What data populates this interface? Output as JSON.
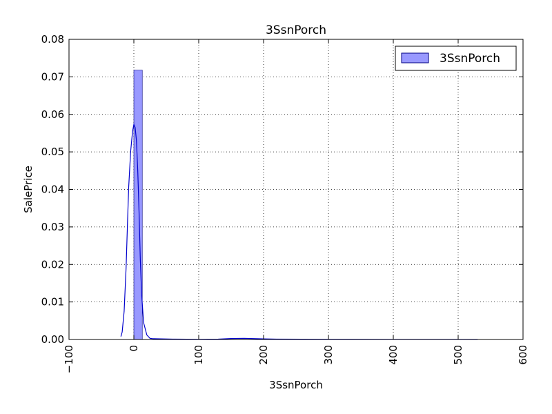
{
  "chart_data": {
    "type": "bar",
    "title": "3SsnPorch",
    "xlabel": "3SsnPorch",
    "ylabel": "SalePrice",
    "xlim": [
      -100,
      600
    ],
    "ylim": [
      0,
      0.08
    ],
    "x_ticks": [
      -100,
      0,
      100,
      200,
      300,
      400,
      500,
      600
    ],
    "x_tick_labels": [
      "−100",
      "0",
      "100",
      "200",
      "300",
      "400",
      "500",
      "600"
    ],
    "y_ticks": [
      0,
      0.01,
      0.02,
      0.03,
      0.04,
      0.05,
      0.06,
      0.07,
      0.08
    ],
    "y_tick_labels": [
      "0.00",
      "0.01",
      "0.02",
      "0.03",
      "0.04",
      "0.05",
      "0.06",
      "0.07",
      "0.08"
    ],
    "grid": true,
    "legend": {
      "placement": "top-right",
      "entries": [
        "3SsnPorch"
      ]
    },
    "series": [
      {
        "name": "3SsnPorch",
        "kind": "histogram",
        "color": "#9999ff",
        "edge_color": "#000080",
        "bins": [
          {
            "x0": 0,
            "x1": 13,
            "value": 0.0718
          }
        ]
      },
      {
        "kind": "kde",
        "color": "#0000cc",
        "points": [
          [
            -20,
            0.0008
          ],
          [
            -18,
            0.002
          ],
          [
            -15,
            0.0075
          ],
          [
            -12,
            0.019
          ],
          [
            -10,
            0.03
          ],
          [
            -8,
            0.0405
          ],
          [
            -5,
            0.05
          ],
          [
            -2,
            0.0555
          ],
          [
            0,
            0.0573
          ],
          [
            2,
            0.0565
          ],
          [
            4,
            0.053
          ],
          [
            6,
            0.045
          ],
          [
            8,
            0.034
          ],
          [
            10,
            0.021
          ],
          [
            12,
            0.012
          ],
          [
            15,
            0.0045
          ],
          [
            20,
            0.0012
          ],
          [
            25,
            0.0003
          ],
          [
            30,
            0.0002
          ],
          [
            60,
            0.0001
          ],
          [
            100,
            5e-05
          ],
          [
            130,
            0.0001
          ],
          [
            150,
            0.00025
          ],
          [
            170,
            0.0003
          ],
          [
            190,
            0.0002
          ],
          [
            220,
            0.0001
          ],
          [
            300,
            5e-05
          ],
          [
            400,
            3e-05
          ],
          [
            500,
            2e-05
          ],
          [
            530,
            0.0
          ]
        ]
      }
    ]
  }
}
